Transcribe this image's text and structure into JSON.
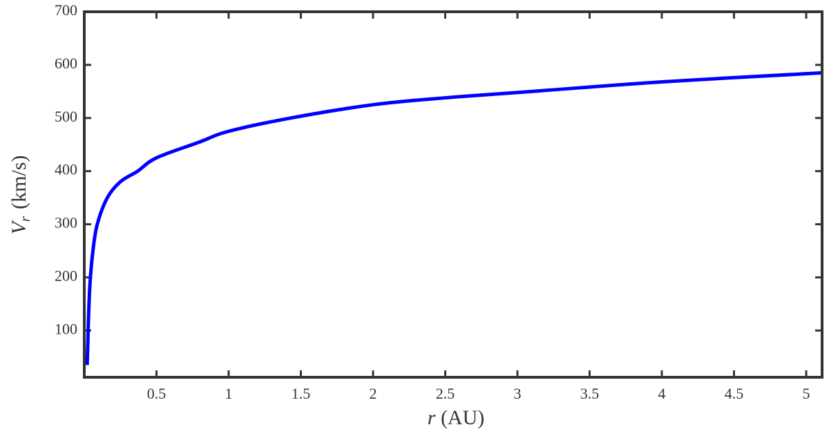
{
  "chart_data": {
    "type": "line",
    "xlabel": {
      "symbol": "r",
      "unit": "(AU)"
    },
    "ylabel": {
      "symbol": "V",
      "subscript": "r",
      "unit": "(km/s)"
    },
    "x": [
      0.02,
      0.025,
      0.03,
      0.04,
      0.06,
      0.09,
      0.16,
      0.25,
      0.37,
      0.5,
      0.8,
      1,
      1.43,
      2,
      2.5,
      3.1,
      4,
      5.11
    ],
    "values": [
      35,
      80,
      130,
      190,
      250,
      300,
      350,
      380,
      400,
      425,
      455,
      475,
      500,
      525,
      538,
      550,
      568,
      585
    ],
    "color": "#0000ff",
    "xlim": [
      0,
      5.11
    ],
    "ylim": [
      12,
      700
    ],
    "xticks": [
      0.5,
      1,
      1.5,
      2,
      2.5,
      3,
      3.5,
      4,
      4.5,
      5
    ],
    "yticks": [
      100,
      200,
      300,
      400,
      500,
      600,
      700
    ]
  }
}
